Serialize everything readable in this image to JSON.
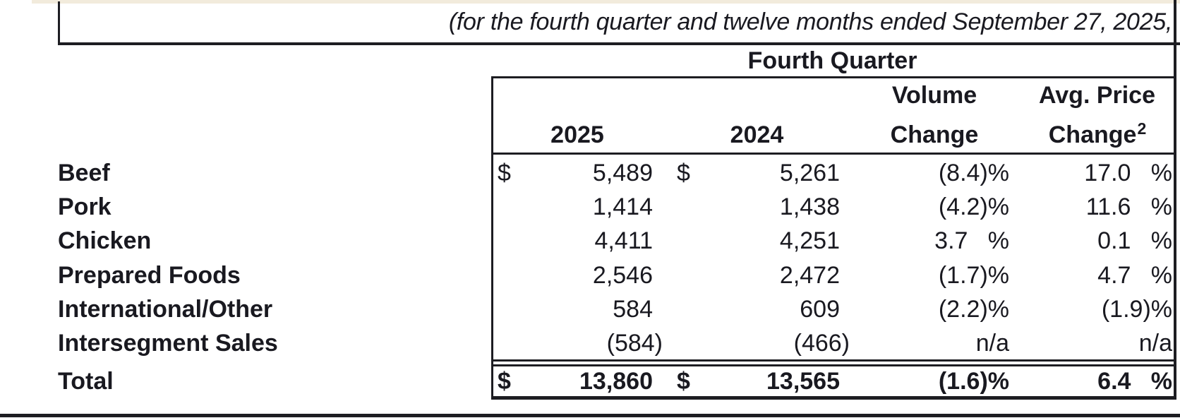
{
  "colors": {
    "ink": "#191920",
    "rule": "#1d1d22",
    "accent_strip": "#f2ebdc",
    "background": "#ffffff"
  },
  "document": {
    "caption": "(for the fourth quarter and twelve months ended September 27, 2025,",
    "period_header": "Fourth Quarter"
  },
  "table": {
    "headers": {
      "year_current": "2025",
      "year_prior": "2024",
      "volume_line1": "Volume",
      "volume_line2": "Change",
      "avg_price_line1": "Avg. Price",
      "avg_price_line2": "Change",
      "avg_price_footnote": "2"
    },
    "rows": [
      {
        "label": "Beef",
        "dollar_2025": "$",
        "v2025": "5,489",
        "dollar_2024": "$",
        "v2024": "5,261",
        "volume": "(8.4)%",
        "avg_price": "17.0   %"
      },
      {
        "label": "Pork",
        "dollar_2025": "",
        "v2025": "1,414",
        "dollar_2024": "",
        "v2024": "1,438",
        "volume": "(4.2)%",
        "avg_price": "11.6   %"
      },
      {
        "label": "Chicken",
        "dollar_2025": "",
        "v2025": "4,411",
        "dollar_2024": "",
        "v2024": "4,251",
        "volume": "3.7   %",
        "avg_price": "0.1   %"
      },
      {
        "label": "Prepared Foods",
        "dollar_2025": "",
        "v2025": "2,546",
        "dollar_2024": "",
        "v2024": "2,472",
        "volume": "(1.7)%",
        "avg_price": "4.7   %"
      },
      {
        "label": "International/Other",
        "dollar_2025": "",
        "v2025": "584",
        "dollar_2024": "",
        "v2024": "609",
        "volume": "(2.2)%",
        "avg_price": "(1.9)%"
      },
      {
        "label": "Intersegment Sales",
        "dollar_2025": "",
        "v2025": "(584)",
        "dollar_2024": "",
        "v2024": "(466)",
        "volume": "n/a",
        "avg_price": "n/a"
      }
    ],
    "total": {
      "label": "Total",
      "dollar_2025": "$",
      "v2025": "13,860",
      "dollar_2024": "$",
      "v2024": "13,565",
      "volume": "(1.6)%",
      "avg_price": "6.4   %"
    }
  }
}
